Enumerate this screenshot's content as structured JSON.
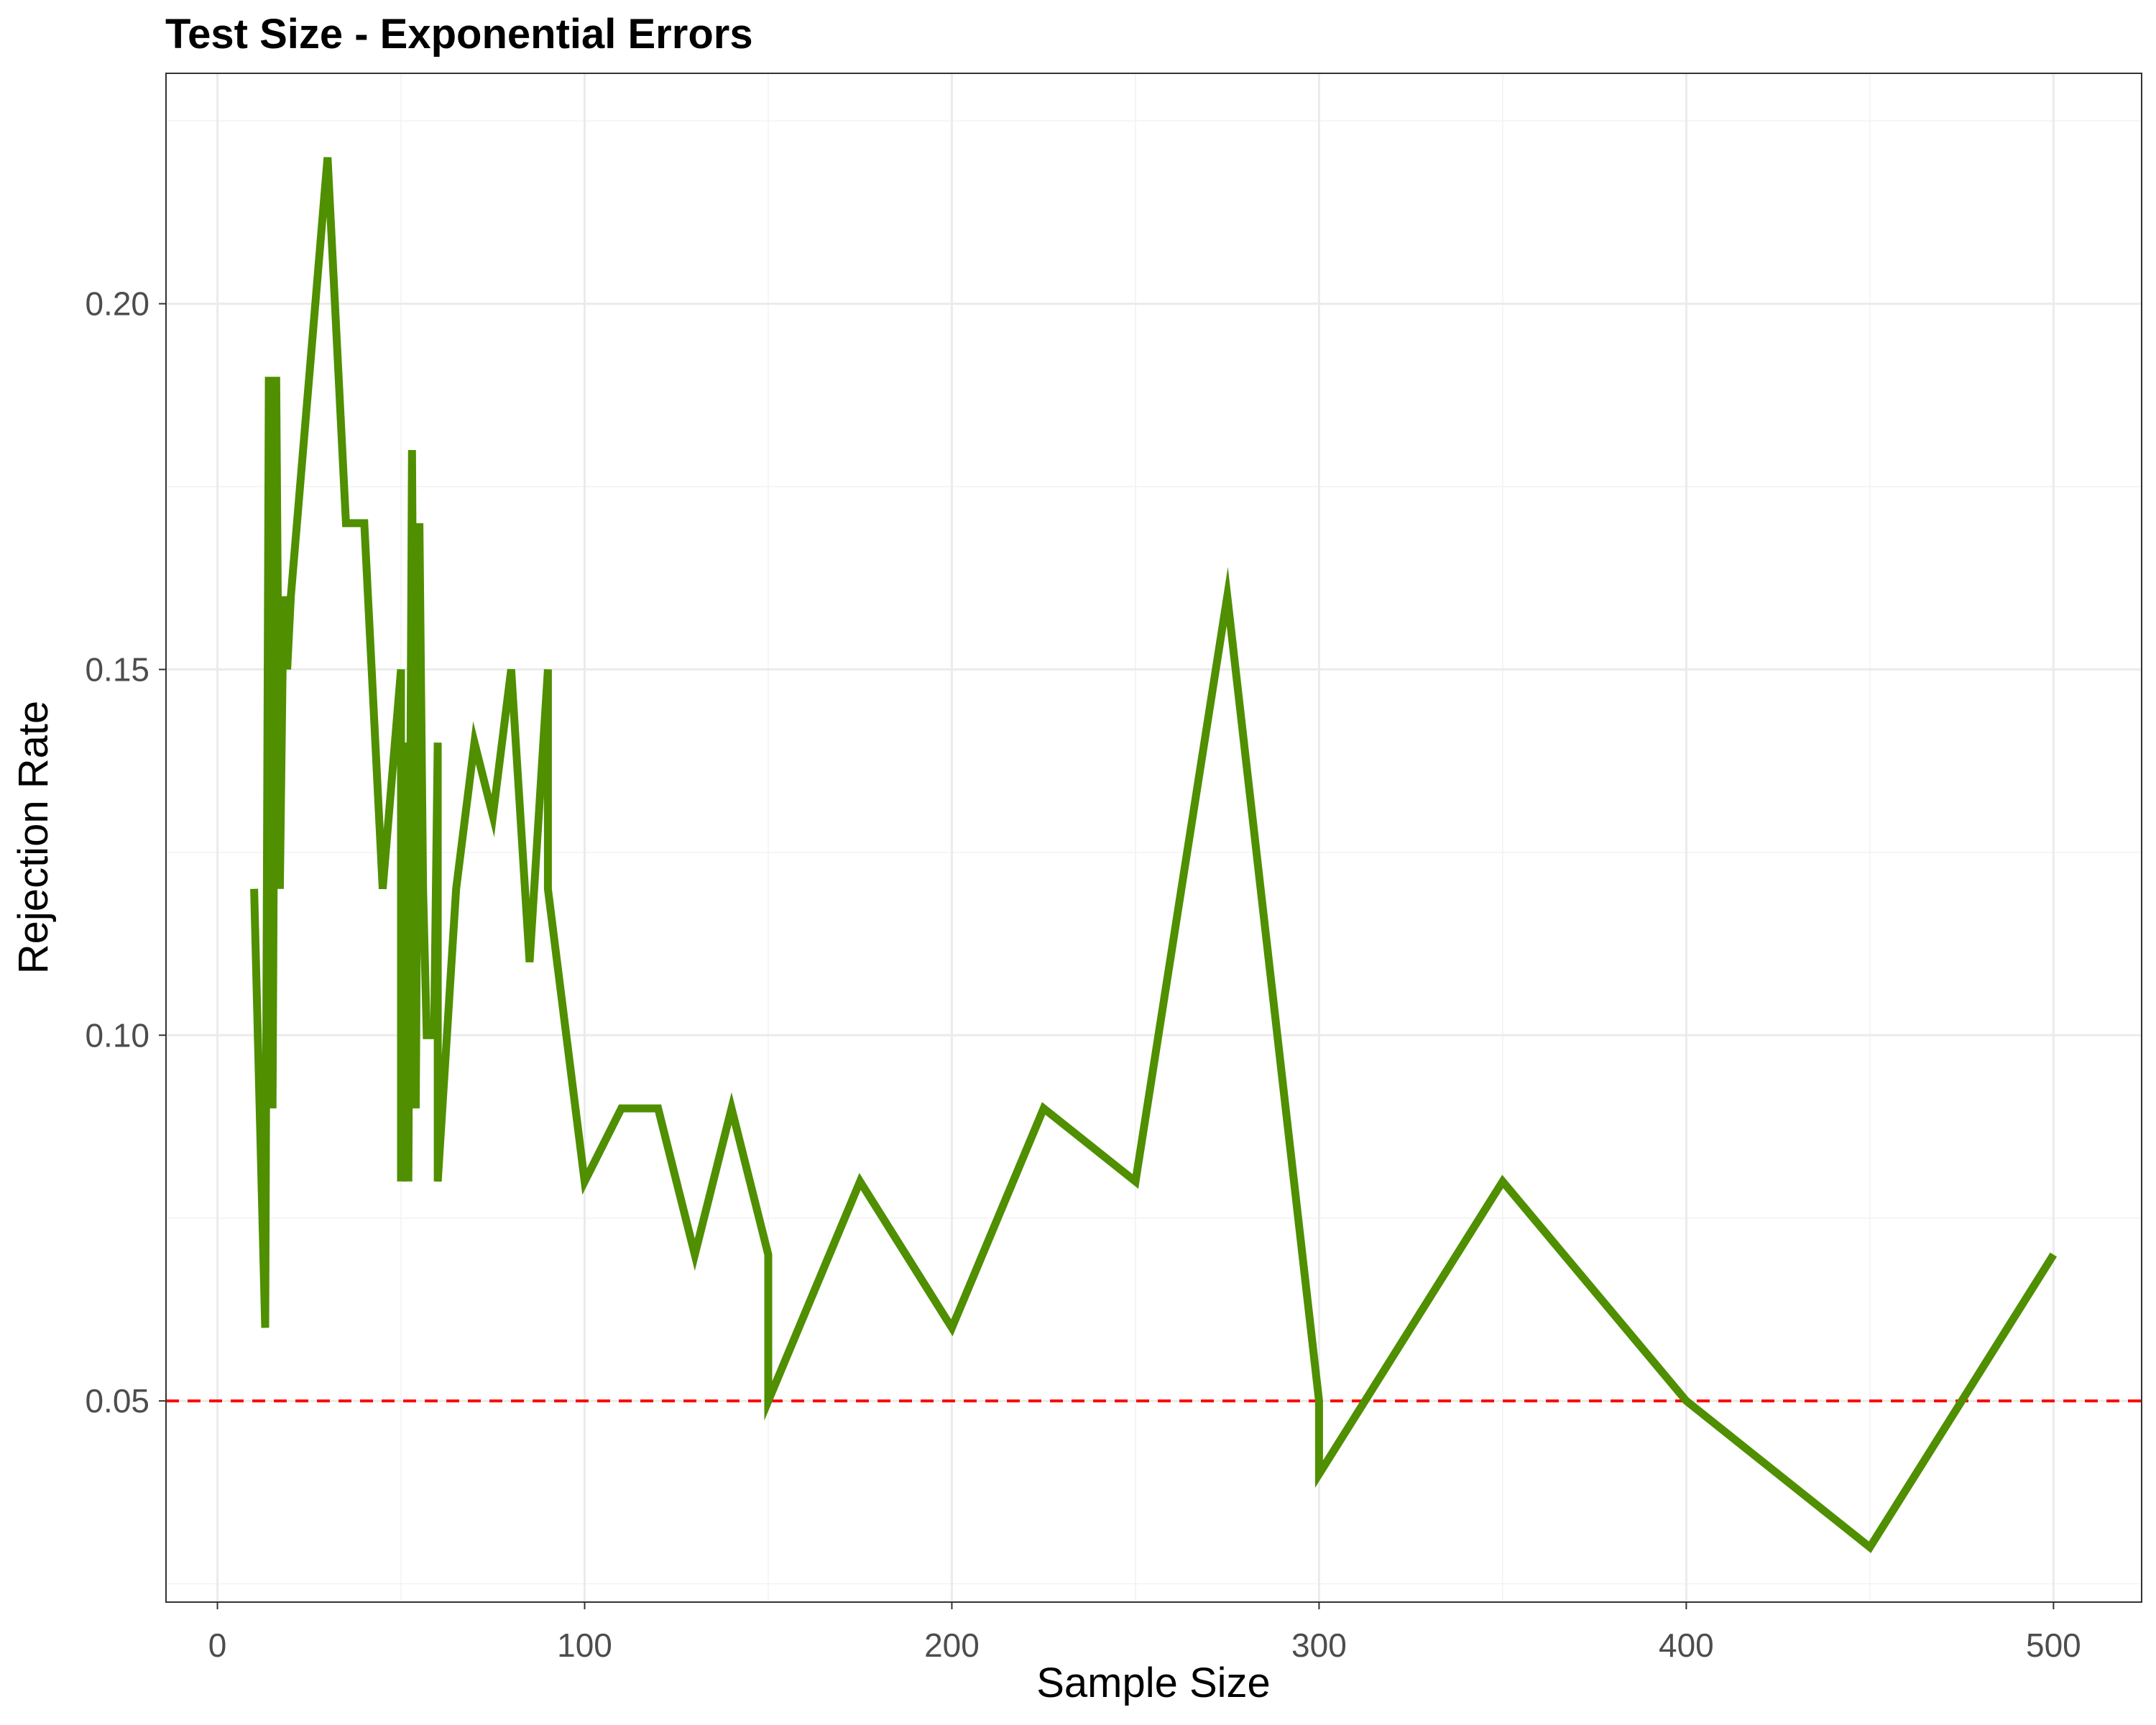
{
  "chart_data": {
    "type": "line",
    "title": "Test Size - Exponential Errors",
    "xlabel": "Sample Size",
    "ylabel": "Rejection Rate",
    "xlim": [
      -14,
      524
    ],
    "ylim": [
      0.0225,
      0.2315
    ],
    "x_ticks": [
      0,
      100,
      200,
      300,
      400,
      500
    ],
    "y_ticks": [
      0.05,
      0.1,
      0.15,
      0.2
    ],
    "x_tick_labels": [
      "0",
      "100",
      "200",
      "300",
      "400",
      "500"
    ],
    "y_tick_labels": [
      "0.05",
      "0.10",
      "0.15",
      "0.20"
    ],
    "grid": true,
    "series": [
      {
        "color": "#4f8f00",
        "x": [
          10,
          13,
          14,
          15,
          16,
          17,
          18,
          19,
          20,
          30,
          35,
          40,
          45,
          50,
          50,
          51,
          52,
          53,
          54,
          55,
          56,
          57,
          58,
          59,
          60,
          60,
          65,
          70,
          75,
          80,
          85,
          90,
          90,
          100,
          110,
          120,
          130,
          140,
          150,
          150,
          175,
          200,
          225,
          250,
          275,
          300,
          300,
          350,
          400,
          450,
          500
        ],
        "y": [
          0.12,
          0.06,
          0.19,
          0.09,
          0.19,
          0.12,
          0.16,
          0.15,
          0.16,
          0.22,
          0.17,
          0.17,
          0.12,
          0.15,
          0.08,
          0.14,
          0.08,
          0.18,
          0.09,
          0.17,
          0.12,
          0.1,
          0.1,
          0.1,
          0.14,
          0.08,
          0.12,
          0.14,
          0.13,
          0.15,
          0.11,
          0.15,
          0.12,
          0.08,
          0.09,
          0.09,
          0.07,
          0.09,
          0.07,
          0.05,
          0.08,
          0.06,
          0.09,
          0.08,
          0.16,
          0.05,
          0.04,
          0.08,
          0.05,
          0.03,
          0.07
        ]
      }
    ],
    "reference_line": {
      "y": 0.05,
      "style": "dashed",
      "color": "#ff0000"
    }
  }
}
